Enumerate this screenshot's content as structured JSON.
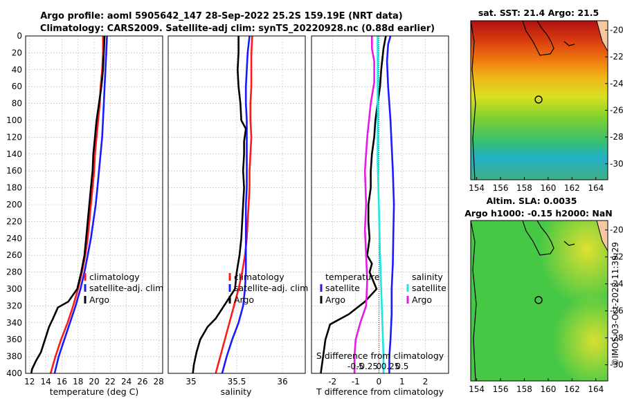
{
  "title_line1": "Argo profile: aoml 5905642_147 28-Sep-2022 25.2S 159.19E (NRT data)",
  "title_line2": "Climatology: CARS2009. Satellite-adj clim: synTS_20220928.nc (0.88d earlier)",
  "timestamp": "©IMOS 03-Oct-2022 11:39:29",
  "colors": {
    "climatology": "#ff1a1a",
    "satellite": "#1a1aff",
    "argo": "#000000",
    "salinity_sat": "#1ae6e6",
    "salinity_argo": "#e61ae6"
  },
  "chart_data": [
    {
      "type": "line",
      "name": "temperature-profile",
      "xlabel": "temperature (deg C)",
      "ylabel": "depth",
      "xlim": [
        11.5,
        28.5
      ],
      "ylim": [
        0,
        400
      ],
      "xticks": [
        12,
        14,
        16,
        18,
        20,
        22,
        24,
        26,
        28
      ],
      "yticks": [
        0,
        20,
        40,
        60,
        80,
        100,
        120,
        140,
        160,
        180,
        200,
        220,
        240,
        260,
        280,
        300,
        320,
        340,
        360,
        380,
        400
      ],
      "legend": [
        "climatology",
        "satellite-adj. clim",
        "Argo"
      ],
      "series": [
        {
          "name": "climatology",
          "points": [
            [
              21.1,
              0
            ],
            [
              21.1,
              20
            ],
            [
              21.0,
              40
            ],
            [
              20.8,
              60
            ],
            [
              20.7,
              80
            ],
            [
              20.5,
              100
            ],
            [
              20.3,
              120
            ],
            [
              20.1,
              140
            ],
            [
              20.0,
              160
            ],
            [
              19.8,
              180
            ],
            [
              19.6,
              200
            ],
            [
              19.4,
              220
            ],
            [
              19.2,
              240
            ],
            [
              18.9,
              260
            ],
            [
              18.5,
              280
            ],
            [
              18.0,
              300
            ],
            [
              17.4,
              320
            ],
            [
              16.7,
              340
            ],
            [
              15.9,
              360
            ],
            [
              15.2,
              380
            ],
            [
              14.6,
              400
            ]
          ]
        },
        {
          "name": "satellite-adj. clim",
          "points": [
            [
              21.6,
              0
            ],
            [
              21.5,
              20
            ],
            [
              21.4,
              40
            ],
            [
              21.3,
              60
            ],
            [
              21.2,
              80
            ],
            [
              21.1,
              100
            ],
            [
              21.0,
              120
            ],
            [
              20.8,
              140
            ],
            [
              20.6,
              160
            ],
            [
              20.4,
              180
            ],
            [
              20.2,
              200
            ],
            [
              19.9,
              220
            ],
            [
              19.6,
              240
            ],
            [
              19.2,
              260
            ],
            [
              18.8,
              280
            ],
            [
              18.3,
              300
            ],
            [
              17.7,
              320
            ],
            [
              17.0,
              340
            ],
            [
              16.3,
              360
            ],
            [
              15.6,
              380
            ],
            [
              15.1,
              400
            ]
          ]
        },
        {
          "name": "Argo",
          "points": [
            [
              21.3,
              0
            ],
            [
              21.2,
              20
            ],
            [
              21.1,
              40
            ],
            [
              20.9,
              60
            ],
            [
              20.6,
              80
            ],
            [
              20.3,
              100
            ],
            [
              20.1,
              120
            ],
            [
              19.9,
              140
            ],
            [
              19.8,
              160
            ],
            [
              19.6,
              180
            ],
            [
              19.4,
              200
            ],
            [
              19.2,
              220
            ],
            [
              19.0,
              240
            ],
            [
              18.8,
              260
            ],
            [
              18.4,
              280
            ],
            [
              17.9,
              300
            ],
            [
              16.8,
              315
            ],
            [
              15.5,
              322
            ],
            [
              14.9,
              335
            ],
            [
              14.4,
              345
            ],
            [
              13.9,
              360
            ],
            [
              13.4,
              375
            ],
            [
              12.8,
              385
            ],
            [
              12.3,
              395
            ],
            [
              12.2,
              400
            ]
          ]
        }
      ]
    },
    {
      "type": "line",
      "name": "salinity-profile",
      "xlabel": "salinity",
      "xlim": [
        34.75,
        36.25
      ],
      "ylim": [
        0,
        400
      ],
      "xticks": [
        35,
        35.5,
        36
      ],
      "legend": [
        "climatology",
        "satellite-adj. clim",
        "Argo"
      ],
      "series": [
        {
          "name": "climatology",
          "points": [
            [
              35.67,
              0
            ],
            [
              35.66,
              20
            ],
            [
              35.66,
              40
            ],
            [
              35.66,
              60
            ],
            [
              35.65,
              80
            ],
            [
              35.65,
              100
            ],
            [
              35.66,
              120
            ],
            [
              35.65,
              140
            ],
            [
              35.64,
              160
            ],
            [
              35.64,
              180
            ],
            [
              35.63,
              200
            ],
            [
              35.62,
              220
            ],
            [
              35.61,
              240
            ],
            [
              35.59,
              260
            ],
            [
              35.56,
              280
            ],
            [
              35.52,
              300
            ],
            [
              35.47,
              320
            ],
            [
              35.42,
              340
            ],
            [
              35.37,
              360
            ],
            [
              35.32,
              380
            ],
            [
              35.27,
              400
            ]
          ]
        },
        {
          "name": "satellite-adj. clim",
          "points": [
            [
              35.64,
              0
            ],
            [
              35.62,
              20
            ],
            [
              35.61,
              40
            ],
            [
              35.6,
              60
            ],
            [
              35.6,
              80
            ],
            [
              35.61,
              100
            ],
            [
              35.61,
              120
            ],
            [
              35.61,
              140
            ],
            [
              35.61,
              160
            ],
            [
              35.61,
              180
            ],
            [
              35.6,
              200
            ],
            [
              35.6,
              220
            ],
            [
              35.6,
              240
            ],
            [
              35.6,
              260
            ],
            [
              35.6,
              280
            ],
            [
              35.59,
              300
            ],
            [
              35.57,
              320
            ],
            [
              35.52,
              340
            ],
            [
              35.45,
              360
            ],
            [
              35.39,
              380
            ],
            [
              35.34,
              400
            ]
          ]
        },
        {
          "name": "Argo",
          "points": [
            [
              35.52,
              0
            ],
            [
              35.52,
              20
            ],
            [
              35.51,
              40
            ],
            [
              35.52,
              60
            ],
            [
              35.54,
              80
            ],
            [
              35.55,
              100
            ],
            [
              35.6,
              110
            ],
            [
              35.58,
              125
            ],
            [
              35.58,
              140
            ],
            [
              35.57,
              160
            ],
            [
              35.58,
              180
            ],
            [
              35.57,
              200
            ],
            [
              35.56,
              220
            ],
            [
              35.55,
              240
            ],
            [
              35.53,
              260
            ],
            [
              35.5,
              280
            ],
            [
              35.48,
              300
            ],
            [
              35.39,
              315
            ],
            [
              35.33,
              325
            ],
            [
              35.27,
              335
            ],
            [
              35.18,
              345
            ],
            [
              35.1,
              360
            ],
            [
              35.06,
              375
            ],
            [
              35.03,
              390
            ],
            [
              35.02,
              400
            ]
          ]
        }
      ]
    },
    {
      "type": "line",
      "name": "difference-profile",
      "xlabel": "T difference from climatology",
      "xlim": [
        -2.9,
        3.0
      ],
      "ylim": [
        0,
        400
      ],
      "xticks": [
        -2,
        -1,
        0,
        1,
        2
      ],
      "top_axis_label": "S difference from climatology",
      "top_ticks": [
        "-0.5",
        "-0.25",
        "0",
        "0.25",
        "0.5"
      ],
      "top_tick_values": [
        -0.5,
        -0.25,
        0,
        0.25,
        0.5
      ],
      "legend_temperature_title": "temperature",
      "legend_salinity_title": "salinity",
      "legend_temperature": [
        "satellite",
        "Argo"
      ],
      "legend_salinity": [
        "satellite",
        "Argo"
      ],
      "series": [
        {
          "name": "temperature-satellite",
          "points": [
            [
              0.5,
              0
            ],
            [
              0.4,
              10
            ],
            [
              0.35,
              30
            ],
            [
              0.4,
              60
            ],
            [
              0.45,
              80
            ],
            [
              0.5,
              100
            ],
            [
              0.55,
              130
            ],
            [
              0.6,
              160
            ],
            [
              0.65,
              200
            ],
            [
              0.62,
              240
            ],
            [
              0.6,
              270
            ],
            [
              0.55,
              300
            ],
            [
              0.55,
              330
            ],
            [
              0.5,
              360
            ],
            [
              0.45,
              380
            ],
            [
              0.45,
              400
            ]
          ]
        },
        {
          "name": "temperature-argo",
          "points": [
            [
              0.3,
              0
            ],
            [
              0.2,
              15
            ],
            [
              0.1,
              40
            ],
            [
              0.05,
              60
            ],
            [
              -0.05,
              80
            ],
            [
              -0.15,
              100
            ],
            [
              -0.2,
              120
            ],
            [
              -0.3,
              140
            ],
            [
              -0.35,
              160
            ],
            [
              -0.35,
              180
            ],
            [
              -0.45,
              200
            ],
            [
              -0.45,
              220
            ],
            [
              -0.4,
              240
            ],
            [
              -0.5,
              260
            ],
            [
              -0.3,
              270
            ],
            [
              -0.4,
              280
            ],
            [
              -0.1,
              300
            ],
            [
              -0.6,
              315
            ],
            [
              -1.3,
              330
            ],
            [
              -2.1,
              342
            ],
            [
              -2.3,
              360
            ],
            [
              -2.4,
              380
            ],
            [
              -2.5,
              400
            ]
          ]
        },
        {
          "name": "salinity-satellite",
          "points": [
            [
              -0.05,
              0
            ],
            [
              -0.05,
              40
            ],
            [
              -0.05,
              100
            ],
            [
              -0.05,
              150
            ],
            [
              0.0,
              200
            ],
            [
              0.05,
              260
            ],
            [
              0.1,
              300
            ],
            [
              0.15,
              340
            ],
            [
              0.2,
              380
            ],
            [
              0.2,
              400
            ]
          ]
        },
        {
          "name": "salinity-argo",
          "points": [
            [
              -0.3,
              0
            ],
            [
              -0.3,
              15
            ],
            [
              -0.2,
              30
            ],
            [
              -0.2,
              55
            ],
            [
              -0.35,
              80
            ],
            [
              -0.5,
              120
            ],
            [
              -0.6,
              160
            ],
            [
              -0.55,
              200
            ],
            [
              -0.6,
              230
            ],
            [
              -0.55,
              260
            ],
            [
              -0.5,
              290
            ],
            [
              -0.55,
              320
            ],
            [
              -0.8,
              340
            ],
            [
              -1.0,
              360
            ],
            [
              -1.05,
              380
            ],
            [
              -1.05,
              400
            ]
          ]
        }
      ]
    },
    {
      "type": "heatmap",
      "name": "sst-map",
      "title": "sat. SST: 21.4 Argo: 21.5",
      "xticks": [
        154,
        156,
        158,
        160,
        162,
        164
      ],
      "yticks": [
        -20,
        -22,
        -24,
        -26,
        -28,
        -30
      ],
      "xlim": [
        153.5,
        165.0
      ],
      "ylim": [
        -31.2,
        -19.3
      ],
      "marker": [
        159.19,
        -25.2
      ]
    },
    {
      "type": "heatmap",
      "name": "sla-map",
      "title": "Altim. SLA: 0.0035",
      "title2": "Argo h1000: -0.15 h2000: NaN",
      "xticks": [
        154,
        156,
        158,
        160,
        162,
        164
      ],
      "yticks": [
        -20,
        -22,
        -24,
        -26,
        -28,
        -30
      ],
      "xlim": [
        153.5,
        165.0
      ],
      "ylim": [
        -31.2,
        -19.3
      ],
      "marker": [
        159.19,
        -25.2
      ]
    }
  ]
}
